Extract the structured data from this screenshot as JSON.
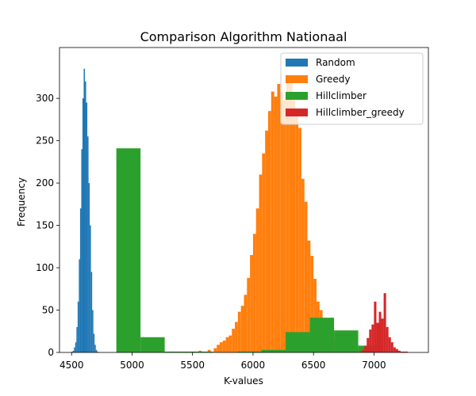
{
  "chart_data": {
    "type": "histogram",
    "title": "Comparison Algorithm Nationaal",
    "xlabel": "K-values",
    "ylabel": "Frequency",
    "xlim": [
      4400,
      7450
    ],
    "ylim": [
      0,
      360
    ],
    "xticks": [
      4500,
      5000,
      5500,
      6000,
      6500,
      7000
    ],
    "yticks": [
      0,
      50,
      100,
      150,
      200,
      250,
      300
    ],
    "legend_position": "upper-right",
    "series": [
      {
        "name": "Random",
        "color": "#1f77b4",
        "bin_width": 10,
        "bins": [
          [
            4500,
            1
          ],
          [
            4510,
            2
          ],
          [
            4520,
            6
          ],
          [
            4530,
            12
          ],
          [
            4540,
            30
          ],
          [
            4550,
            60
          ],
          [
            4560,
            110
          ],
          [
            4570,
            170
          ],
          [
            4580,
            240
          ],
          [
            4590,
            300
          ],
          [
            4600,
            335
          ],
          [
            4610,
            320
          ],
          [
            4620,
            295
          ],
          [
            4630,
            255
          ],
          [
            4640,
            200
          ],
          [
            4650,
            150
          ],
          [
            4660,
            95
          ],
          [
            4670,
            50
          ],
          [
            4680,
            22
          ],
          [
            4690,
            9
          ],
          [
            4700,
            3
          ],
          [
            4710,
            1
          ]
        ]
      },
      {
        "name": "Greedy",
        "color": "#ff7f0e",
        "bin_width": 25,
        "bins": [
          [
            5300,
            1
          ],
          [
            5375,
            1
          ],
          [
            5450,
            1
          ],
          [
            5500,
            1
          ],
          [
            5550,
            2
          ],
          [
            5625,
            3
          ],
          [
            5675,
            5
          ],
          [
            5700,
            9
          ],
          [
            5725,
            12
          ],
          [
            5750,
            14
          ],
          [
            5775,
            18
          ],
          [
            5800,
            20
          ],
          [
            5825,
            28
          ],
          [
            5850,
            36
          ],
          [
            5875,
            48
          ],
          [
            5900,
            55
          ],
          [
            5925,
            68
          ],
          [
            5950,
            88
          ],
          [
            5975,
            115
          ],
          [
            6000,
            140
          ],
          [
            6025,
            170
          ],
          [
            6050,
            210
          ],
          [
            6075,
            235
          ],
          [
            6100,
            262
          ],
          [
            6125,
            285
          ],
          [
            6150,
            308
          ],
          [
            6175,
            302
          ],
          [
            6200,
            317
          ],
          [
            6225,
            308
          ],
          [
            6250,
            298
          ],
          [
            6275,
            318
          ],
          [
            6300,
            322
          ],
          [
            6325,
            298
          ],
          [
            6350,
            280
          ],
          [
            6375,
            265
          ],
          [
            6400,
            205
          ],
          [
            6425,
            178
          ],
          [
            6450,
            132
          ],
          [
            6475,
            114
          ],
          [
            6500,
            87
          ],
          [
            6525,
            60
          ],
          [
            6550,
            50
          ],
          [
            6575,
            37
          ],
          [
            6600,
            30
          ],
          [
            6625,
            25
          ],
          [
            6650,
            15
          ],
          [
            6675,
            9
          ],
          [
            6700,
            5
          ],
          [
            6725,
            2
          ],
          [
            6750,
            1
          ]
        ]
      },
      {
        "name": "Hillclimber",
        "color": "#2ca02c",
        "bin_width": 200,
        "bins": [
          [
            4870,
            241
          ],
          [
            5070,
            18
          ],
          [
            5270,
            1
          ],
          [
            5470,
            1
          ],
          [
            5670,
            0
          ],
          [
            5870,
            1
          ],
          [
            6070,
            3
          ],
          [
            6270,
            24
          ],
          [
            6470,
            41
          ],
          [
            6670,
            26
          ],
          [
            6870,
            8
          ]
        ]
      },
      {
        "name": "Hillclimber_greedy",
        "color": "#d62728",
        "bin_width": 20,
        "bins": [
          [
            6880,
            1
          ],
          [
            6900,
            3
          ],
          [
            6920,
            8
          ],
          [
            6940,
            17
          ],
          [
            6960,
            27
          ],
          [
            6980,
            33
          ],
          [
            7000,
            60
          ],
          [
            7020,
            35
          ],
          [
            7040,
            48
          ],
          [
            7060,
            40
          ],
          [
            7080,
            70
          ],
          [
            7100,
            30
          ],
          [
            7120,
            18
          ],
          [
            7140,
            12
          ],
          [
            7160,
            6
          ],
          [
            7180,
            4
          ],
          [
            7200,
            2
          ],
          [
            7220,
            1
          ],
          [
            7240,
            1
          ],
          [
            7260,
            1
          ]
        ]
      }
    ]
  }
}
